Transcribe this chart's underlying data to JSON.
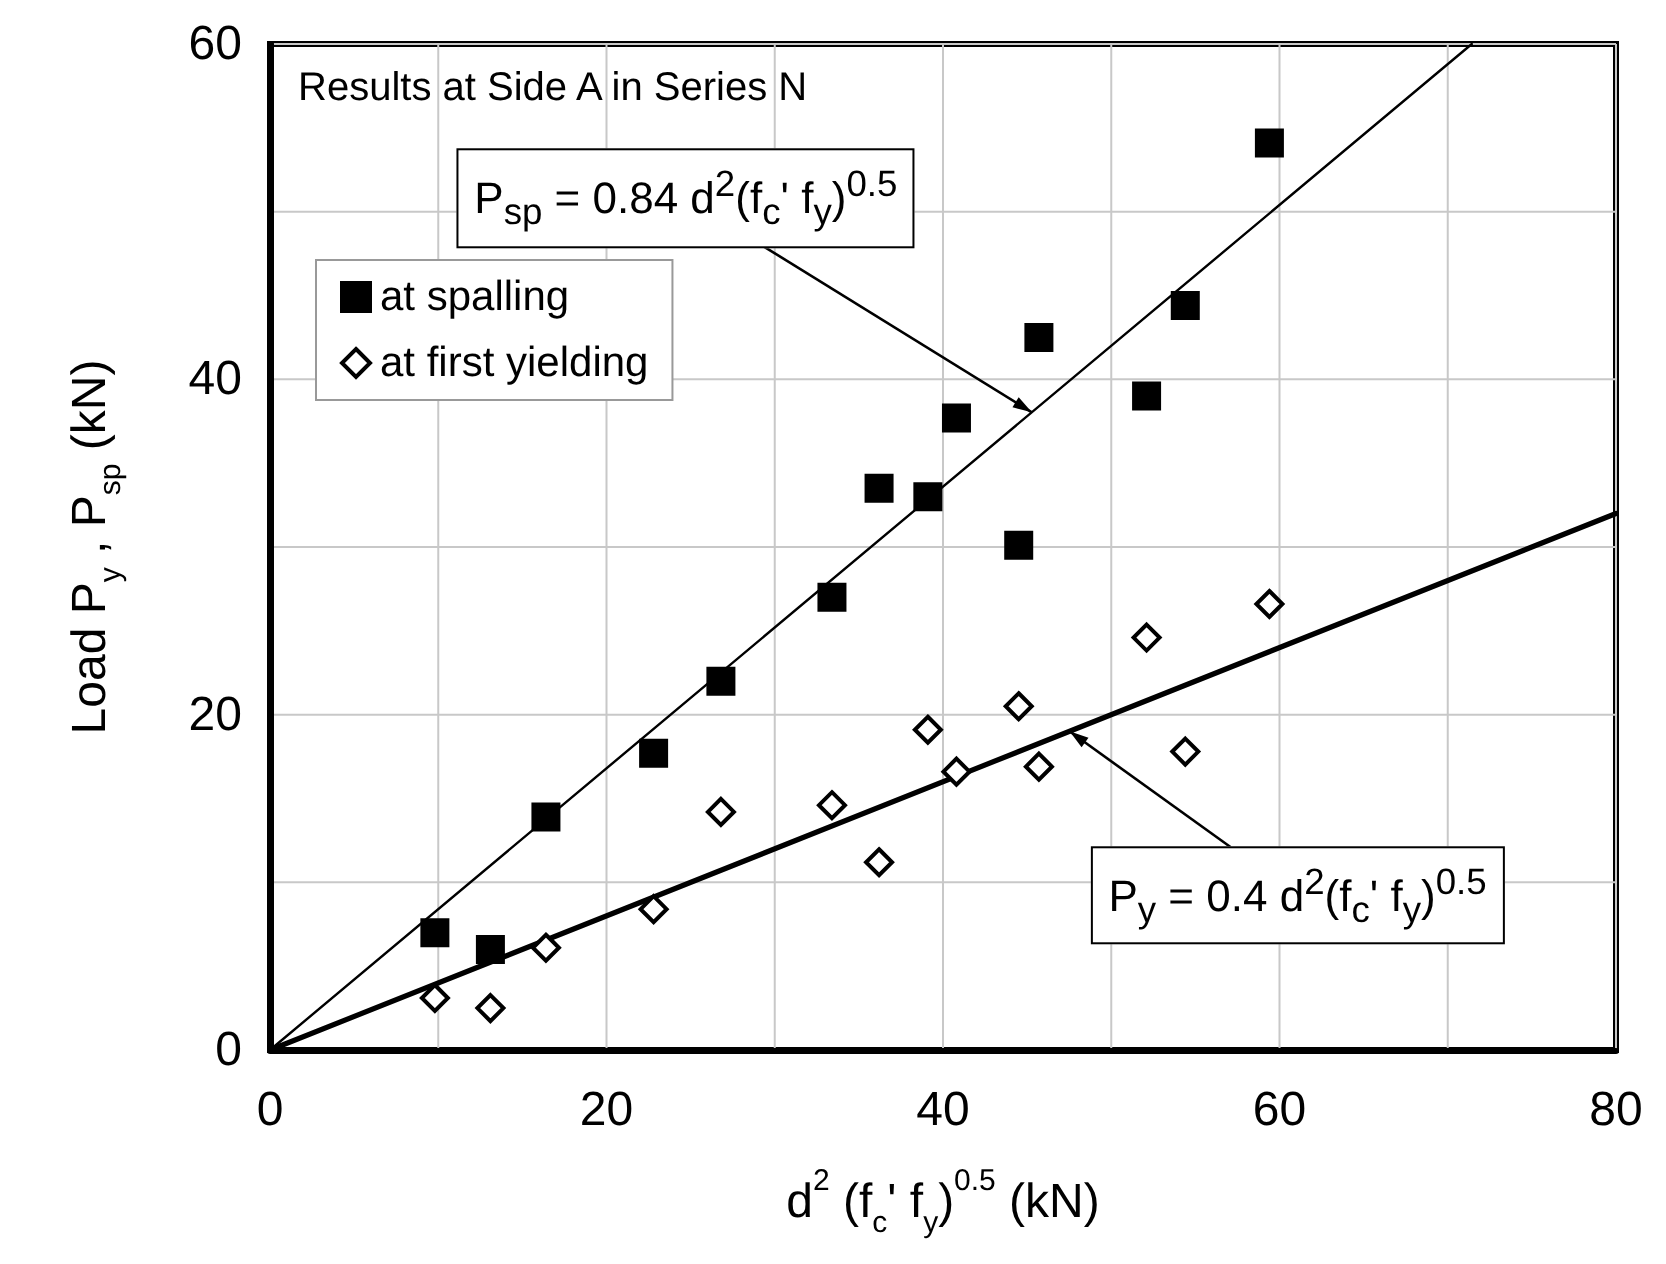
{
  "chart_data": {
    "type": "scatter",
    "xlabel": "d$^{2}$ (f$_{c}$' f$_{y}$)$^{0.5}$ (kN)",
    "ylabel": "Load P$_{y}$ , P$_{sp}$ (kN)",
    "annotations": [
      "Results at Side A in Series N",
      "P$_{sp}$ = 0.84 d$^{2}$(f$_{c}$' f$_{y}$)$^{0.5}$",
      "P$_{y}$ = 0.4 d$^{2}$(f$_{c}$' f$_{y}$)$^{0.5}$"
    ],
    "series": [
      {
        "name": "at spalling",
        "marker": "square",
        "color": "#000000",
        "x": [
          9.8,
          13.1,
          16.4,
          22.8,
          26.8,
          33.4,
          36.2,
          39.1,
          40.8,
          44.5,
          45.7,
          52.1,
          54.4,
          59.4
        ],
        "values": [
          7.0,
          6.0,
          13.9,
          17.7,
          22.0,
          27.0,
          33.5,
          33.0,
          37.7,
          30.1,
          42.5,
          39.0,
          44.4,
          54.1
        ]
      },
      {
        "name": "at first yielding",
        "marker": "diamond",
        "color": "#000000",
        "x": [
          9.8,
          13.1,
          16.4,
          22.8,
          26.8,
          33.4,
          36.2,
          39.1,
          40.8,
          44.5,
          45.7,
          52.1,
          54.4,
          59.4
        ],
        "values": [
          3.1,
          2.5,
          6.1,
          8.4,
          14.2,
          14.6,
          11.2,
          19.1,
          16.6,
          20.5,
          16.9,
          24.6,
          17.8,
          26.6
        ]
      },
      {
        "type": "line",
        "marker": "none",
        "color": "#000000",
        "x": [
          0,
          71.43
        ],
        "values": [
          0,
          60
        ]
      },
      {
        "type": "line",
        "marker": "none",
        "color": "#000000",
        "x": [
          0,
          80
        ],
        "values": [
          0,
          32
        ]
      }
    ],
    "xlim": [
      0,
      80
    ],
    "xticks": [
      0,
      20,
      40,
      60,
      80
    ],
    "ylim": [
      0,
      60
    ],
    "yticks": [
      0,
      20,
      40,
      60
    ],
    "grid": true,
    "legend": "top left"
  }
}
